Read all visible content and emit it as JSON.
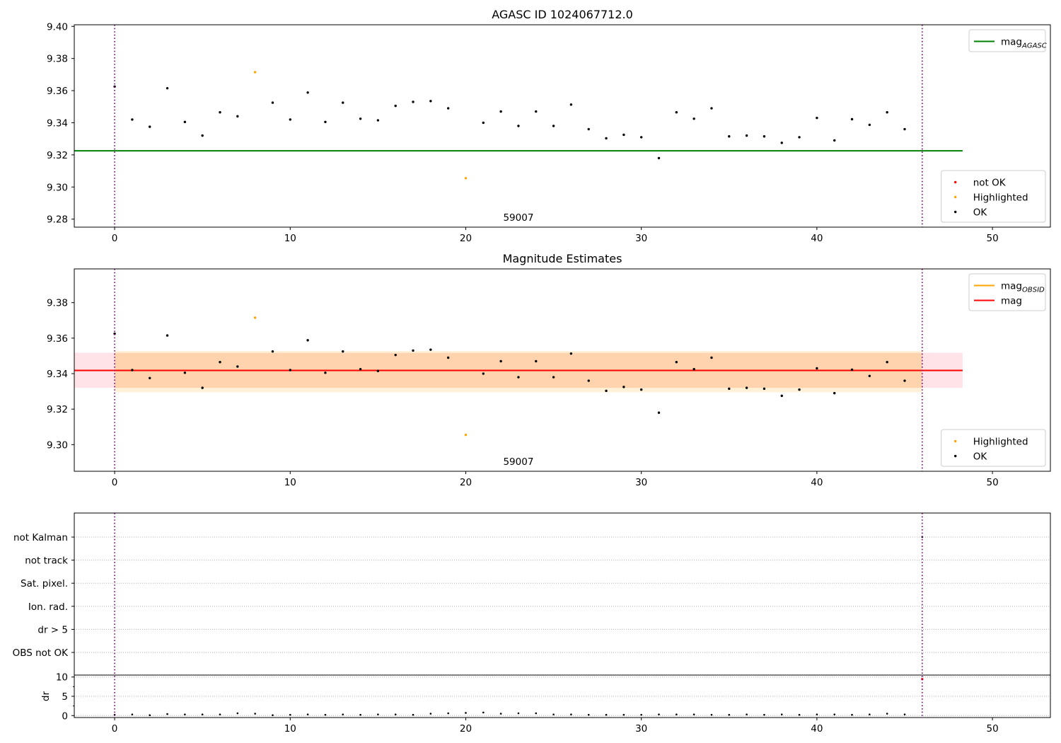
{
  "chart_data": [
    {
      "type": "scatter",
      "title": "AGASC ID 1024067712.0",
      "xlim": [
        -2.3,
        53.3
      ],
      "ylim": [
        9.275,
        9.401
      ],
      "xticks": [
        0,
        10,
        20,
        30,
        40,
        50
      ],
      "yticks": [
        9.28,
        9.3,
        9.32,
        9.34,
        9.36,
        9.38,
        9.4
      ],
      "ytick_labels": [
        "9.28",
        "9.30",
        "9.32",
        "9.34",
        "9.36",
        "9.38",
        "9.40"
      ],
      "obsid_label": "59007",
      "obsid_label_x": 23,
      "obsid_boundaries": [
        0,
        46
      ],
      "series": [
        {
          "name": "OK",
          "color": "#000000",
          "x": [
            0,
            1,
            2,
            3,
            4,
            5,
            6,
            7,
            9,
            10,
            11,
            12,
            13,
            14,
            15,
            16,
            17,
            18,
            19,
            21,
            22,
            23,
            24,
            25,
            26,
            27,
            28,
            29,
            30,
            31,
            32,
            33,
            34,
            35,
            36,
            37,
            38,
            39,
            40,
            41,
            42,
            43,
            44,
            45
          ],
          "y": [
            9.3625,
            9.342,
            9.3375,
            9.3615,
            9.3405,
            9.332,
            9.3465,
            9.344,
            9.3525,
            9.342,
            9.3588,
            9.3405,
            9.3525,
            9.3425,
            9.3415,
            9.3505,
            9.353,
            9.3535,
            9.349,
            9.34,
            9.347,
            9.338,
            9.347,
            9.338,
            9.3513,
            9.336,
            9.3303,
            9.3325,
            9.331,
            9.318,
            9.3465,
            9.3425,
            9.349,
            9.3315,
            9.332,
            9.3315,
            9.3275,
            9.331,
            9.343,
            9.329,
            9.3422,
            9.3387,
            9.3465,
            9.336
          ]
        },
        {
          "name": "Highlighted",
          "color": "#ffa500",
          "x": [
            8,
            20
          ],
          "y": [
            9.3715,
            9.3055
          ]
        },
        {
          "name": "not OK",
          "color": "#ff0000",
          "x": [],
          "y": []
        }
      ],
      "reference_lines": [
        {
          "name": "mag_AGASC",
          "color": "#008000",
          "y": 9.3225,
          "x_range": [
            -2.3,
            48.3
          ]
        }
      ],
      "legends": [
        {
          "placement": "upper right",
          "entries": [
            {
              "kind": "line",
              "color": "#008000",
              "text": "mag",
              "sub": "AGASC"
            }
          ]
        },
        {
          "placement": "lower right",
          "entries": [
            {
              "kind": "dot",
              "color": "#ff0000",
              "text": "not OK"
            },
            {
              "kind": "dot",
              "color": "#ffa500",
              "text": "Highlighted"
            },
            {
              "kind": "dot",
              "color": "#000000",
              "text": "OK"
            }
          ]
        }
      ]
    },
    {
      "type": "scatter",
      "title": "Magnitude Estimates",
      "xlim": [
        -2.3,
        53.3
      ],
      "ylim": [
        9.285,
        9.399
      ],
      "xticks": [
        0,
        10,
        20,
        30,
        40,
        50
      ],
      "yticks": [
        9.3,
        9.32,
        9.34,
        9.36,
        9.38
      ],
      "ytick_labels": [
        "9.30",
        "9.32",
        "9.34",
        "9.36",
        "9.38"
      ],
      "obsid_label": "59007",
      "obsid_label_x": 23,
      "obsid_boundaries": [
        0,
        46
      ],
      "series": [
        {
          "name": "OK",
          "color": "#000000",
          "x": [
            0,
            1,
            2,
            3,
            4,
            5,
            6,
            7,
            9,
            10,
            11,
            12,
            13,
            14,
            15,
            16,
            17,
            18,
            19,
            21,
            22,
            23,
            24,
            25,
            26,
            27,
            28,
            29,
            30,
            31,
            32,
            33,
            34,
            35,
            36,
            37,
            38,
            39,
            40,
            41,
            42,
            43,
            44,
            45
          ],
          "y": [
            9.3625,
            9.342,
            9.3375,
            9.3615,
            9.3405,
            9.332,
            9.3465,
            9.344,
            9.3525,
            9.342,
            9.3588,
            9.3405,
            9.3525,
            9.3425,
            9.3415,
            9.3505,
            9.353,
            9.3535,
            9.349,
            9.34,
            9.347,
            9.338,
            9.347,
            9.338,
            9.3513,
            9.336,
            9.3303,
            9.3325,
            9.331,
            9.318,
            9.3465,
            9.3425,
            9.349,
            9.3315,
            9.332,
            9.3315,
            9.3275,
            9.331,
            9.343,
            9.329,
            9.3422,
            9.3387,
            9.3465,
            9.336
          ]
        },
        {
          "name": "Highlighted",
          "color": "#ffa500",
          "x": [
            8,
            20
          ],
          "y": [
            9.3715,
            9.3055
          ]
        }
      ],
      "bands": [
        {
          "color": "#ffc0cb",
          "opacity": 0.45,
          "x_range": [
            -2.3,
            48.3
          ],
          "y_range": [
            9.332,
            9.3518
          ]
        },
        {
          "color": "#ffa500",
          "opacity": 0.15,
          "x_range": [
            0,
            46
          ],
          "y_range": [
            9.3295,
            9.3528
          ]
        },
        {
          "color": "#ffa500",
          "opacity": 0.12,
          "x_range": [
            0,
            46
          ],
          "y_range": [
            9.332,
            9.3515
          ]
        }
      ],
      "reference_lines": [
        {
          "name": "mag_OBSID",
          "color": "#ffa500",
          "y": 9.3418,
          "x_range": [
            0,
            46
          ]
        },
        {
          "name": "mag",
          "color": "#ff0000",
          "y": 9.3418,
          "x_range": [
            -2.3,
            48.3
          ]
        }
      ],
      "legends": [
        {
          "placement": "upper right",
          "entries": [
            {
              "kind": "line",
              "color": "#ffa500",
              "text": "mag",
              "sub": "OBSID"
            },
            {
              "kind": "line",
              "color": "#ff0000",
              "text": "mag"
            }
          ]
        },
        {
          "placement": "lower right",
          "entries": [
            {
              "kind": "dot",
              "color": "#ffa500",
              "text": "Highlighted"
            },
            {
              "kind": "dot",
              "color": "#000000",
              "text": "OK"
            }
          ]
        }
      ]
    },
    {
      "type": "scatter",
      "xlim": [
        -2.3,
        53.3
      ],
      "xticks": [
        0,
        10,
        20,
        30,
        40,
        50
      ],
      "obsid_boundaries": [
        0,
        46
      ],
      "flag_rows": [
        "not Kalman",
        "not track",
        "Sat. pixel.",
        "Ion. rad.",
        "dr > 5",
        "OBS not OK"
      ],
      "flag_points": [
        {
          "x": 46,
          "row": "not Kalman",
          "color": "#000000"
        }
      ],
      "dr": {
        "ylabel": "dr",
        "ylim": [
          -0.5,
          10.5
        ],
        "yticks": [
          0,
          5,
          10
        ],
        "ytick_labels": [
          "0",
          "5",
          "10"
        ],
        "minor_yticks": [
          2.5,
          7.5
        ],
        "x": [
          0,
          1,
          2,
          3,
          4,
          5,
          6,
          7,
          8,
          9,
          10,
          11,
          12,
          13,
          14,
          15,
          16,
          17,
          18,
          19,
          20,
          21,
          22,
          23,
          24,
          25,
          26,
          27,
          28,
          29,
          30,
          31,
          32,
          33,
          34,
          35,
          36,
          37,
          38,
          39,
          40,
          41,
          42,
          43,
          44,
          45
        ],
        "y": [
          0.2,
          0.3,
          0.1,
          0.4,
          0.3,
          0.3,
          0.3,
          0.6,
          0.5,
          0.1,
          0.2,
          0.3,
          0.2,
          0.3,
          0.2,
          0.3,
          0.3,
          0.2,
          0.5,
          0.6,
          0.7,
          0.8,
          0.5,
          0.6,
          0.6,
          0.3,
          0.3,
          0.2,
          0.2,
          0.2,
          0.2,
          0.3,
          0.3,
          0.3,
          0.2,
          0.2,
          0.3,
          0.2,
          0.3,
          0.2,
          0.3,
          0.3,
          0.2,
          0.3,
          0.5,
          0.3
        ],
        "colors": {
          "default": "#000000"
        },
        "out_of_range_marks": [
          {
            "x": 46,
            "y": 10,
            "color": "#ff0000"
          }
        ]
      }
    }
  ]
}
